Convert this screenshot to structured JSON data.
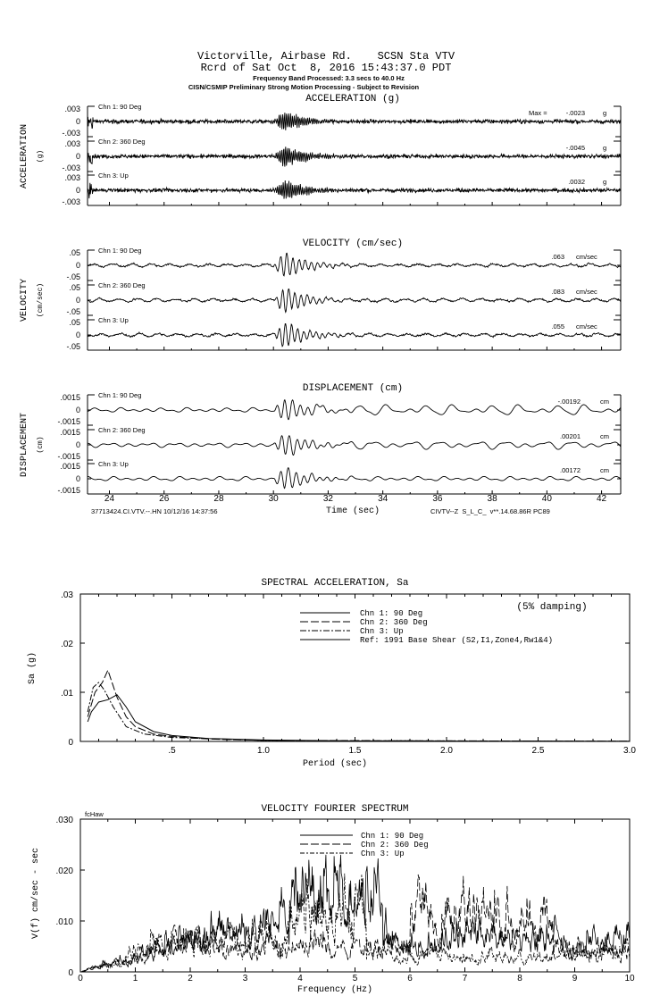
{
  "header": {
    "line1": "Victorville, Airbase Rd.    SCSN Sta VTV",
    "line2": "Rcrd of Sat Oct  8, 2016 15:43:37.0 PDT",
    "line3": "Frequency Band Processed: 3.3 secs to 40.0 Hz",
    "line4": "CISN/CSMIP Preliminary Strong Motion Processing - Subject to Revision"
  },
  "footer": {
    "left": "37713424.CI.VTV.--.HN 10/12/16 14:37:56",
    "right": "CIVTV--Z  S_L_C_  v**.14.68.86R PC89"
  },
  "chart_data": [
    {
      "type": "line",
      "title": "ACCELERATION (g)",
      "ylabel": "ACCELERATION",
      "yunit": "(g)",
      "xlabel": "Time (sec)",
      "xlim": [
        23.2,
        42.7
      ],
      "xticks": [
        "24",
        "26",
        "28",
        "30",
        "32",
        "34",
        "36",
        "38",
        "40",
        "42"
      ],
      "ylim": [
        -0.003,
        0.003
      ],
      "yticks": [
        ".003",
        "0",
        "-.003"
      ],
      "max_prefix": "Max = ",
      "series": [
        {
          "name": "Chn 1: 90 Deg",
          "max": "-.0023",
          "unit": "g"
        },
        {
          "name": "Chn 2: 360 Deg",
          "max": "-.0045",
          "unit": "g"
        },
        {
          "name": "Chn 3: Up",
          "max": ".0032",
          "unit": "g"
        }
      ]
    },
    {
      "type": "line",
      "title": "VELOCITY (cm/sec)",
      "ylabel": "VELOCITY",
      "yunit": "(cm/sec)",
      "xlim": [
        23.2,
        42.7
      ],
      "ylim": [
        -0.05,
        0.05
      ],
      "yticks": [
        ".05",
        "0",
        "-.05"
      ],
      "series": [
        {
          "name": "Chn 1: 90 Deg",
          "max": ".063",
          "unit": "cm/sec"
        },
        {
          "name": "Chn 2: 360 Deg",
          "max": ".083",
          "unit": "cm/sec"
        },
        {
          "name": "Chn 3: Up",
          "max": ".055",
          "unit": "cm/sec"
        }
      ]
    },
    {
      "type": "line",
      "title": "DISPLACEMENT (cm)",
      "ylabel": "DISPLACEMENT",
      "yunit": "(cm)",
      "xlim": [
        23.2,
        42.7
      ],
      "ylim": [
        -0.0015,
        0.0015
      ],
      "yticks": [
        ".0015",
        "0",
        "-.0015"
      ],
      "series": [
        {
          "name": "Chn 1: 90 Deg",
          "max": "-.00192",
          "unit": "cm"
        },
        {
          "name": "Chn 2: 360 Deg",
          "max": ".00201",
          "unit": "cm"
        },
        {
          "name": "Chn 3: Up",
          "max": ".00172",
          "unit": "cm"
        }
      ]
    },
    {
      "type": "line",
      "title": "SPECTRAL ACCELERATION, Sa",
      "ylabel": "Sa (g)",
      "xlabel": "Period (sec)",
      "annotation": "(5% damping)",
      "xlim": [
        0,
        3.0
      ],
      "ylim": [
        0,
        0.03
      ],
      "xticks": [
        ".5",
        "1.0",
        "1.5",
        "2.0",
        "2.5",
        "3.0"
      ],
      "xtick_values": [
        0.5,
        1.0,
        1.5,
        2.0,
        2.5,
        3.0
      ],
      "yticks": [
        ".03",
        ".02",
        ".01",
        "0"
      ],
      "ytick_values": [
        0.03,
        0.02,
        0.01,
        0
      ],
      "legend": [
        "Chn 1: 90 Deg",
        "Chn 2: 360 Deg",
        "Chn 3: Up",
        "Ref: 1991 Base Shear (S2,I1,Zone4,Rw1&4)"
      ],
      "series": [
        {
          "name": "Chn 1: 90 Deg",
          "x": [
            0.04,
            0.06,
            0.1,
            0.15,
            0.2,
            0.25,
            0.3,
            0.4,
            0.5,
            0.7,
            1.0,
            1.5,
            3.0
          ],
          "y": [
            0.004,
            0.006,
            0.008,
            0.0085,
            0.0095,
            0.007,
            0.004,
            0.002,
            0.0012,
            0.0006,
            0.0003,
            0.0001,
            3e-05
          ]
        },
        {
          "name": "Chn 2: 360 Deg",
          "x": [
            0.04,
            0.08,
            0.12,
            0.15,
            0.2,
            0.25,
            0.3,
            0.4,
            0.5,
            0.7,
            1.0,
            3.0
          ],
          "y": [
            0.005,
            0.01,
            0.012,
            0.0145,
            0.009,
            0.005,
            0.003,
            0.0015,
            0.001,
            0.0005,
            0.0002,
            3e-05
          ]
        },
        {
          "name": "Chn 3: Up",
          "x": [
            0.04,
            0.07,
            0.1,
            0.13,
            0.18,
            0.25,
            0.35,
            0.5,
            1.0,
            3.0
          ],
          "y": [
            0.006,
            0.011,
            0.012,
            0.0105,
            0.007,
            0.003,
            0.0015,
            0.0008,
            0.0002,
            2e-05
          ]
        }
      ]
    },
    {
      "type": "line",
      "title": "VELOCITY FOURIER SPECTRUM",
      "corner_label": "fcHaw",
      "ylabel": "V(f)   cm/sec - sec",
      "xlabel": "Frequency (Hz)",
      "xlim": [
        0,
        10
      ],
      "ylim": [
        0,
        0.03
      ],
      "xticks": [
        "0",
        "1",
        "2",
        "3",
        "4",
        "5",
        "6",
        "7",
        "8",
        "9",
        "10"
      ],
      "yticks": [
        ".030",
        ".020",
        ".010",
        "0"
      ],
      "ytick_values": [
        0.03,
        0.02,
        0.01,
        0
      ],
      "legend": [
        "Chn 1: 90 Deg",
        "Chn 2: 360 Deg",
        "Chn 3: Up"
      ],
      "series": [
        {
          "name": "Chn 1: 90 Deg",
          "peak": 0.023,
          "peak_freq": 5.0
        },
        {
          "name": "Chn 2: 360 Deg",
          "peak": 0.025,
          "peak_freq": 6.7
        },
        {
          "name": "Chn 3: Up",
          "peak": 0.022,
          "peak_freq": 4.6
        }
      ]
    }
  ]
}
